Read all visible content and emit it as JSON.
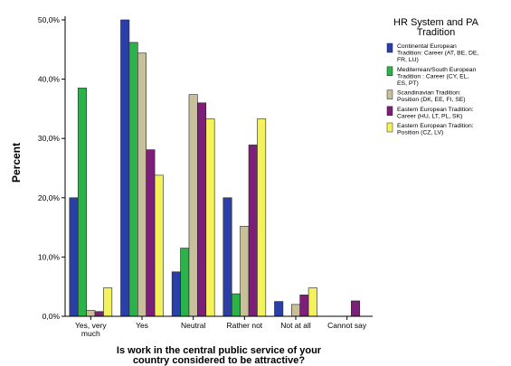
{
  "chart_data": {
    "type": "bar",
    "title": "",
    "xlabel": "Is work in the central public service of your country considered to be attractive?",
    "ylabel": "Percent",
    "ylim": [
      0,
      50
    ],
    "yticks": [
      0,
      10,
      20,
      30,
      40,
      50
    ],
    "ytick_labels": [
      "0,0%",
      "10,0%",
      "20,0%",
      "30,0%",
      "40,0%",
      "50,0%"
    ],
    "categories": [
      "Yes, very much",
      "Yes",
      "Neutral",
      "Rather not",
      "Not at all",
      "Cannot say"
    ],
    "grid": false,
    "legend_position": "right",
    "legend_title": "HR System and PA Tradition",
    "series": [
      {
        "name": "Continental European Tradition: Career (AT, BE, DE, FR, LU)",
        "color": "#2b3fa8",
        "values": [
          20.0,
          50.0,
          7.5,
          20.0,
          2.5,
          0.0
        ]
      },
      {
        "name": "Mediterrean/South European Tradition : Career (CY, EL, ES, PT)",
        "color": "#2bb34a",
        "values": [
          38.5,
          46.2,
          11.5,
          3.8,
          0.0,
          0.0
        ]
      },
      {
        "name": "Scandinavian Tradition: Position (DK, EE, FI, SE)",
        "color": "#c8c09a",
        "values": [
          1.0,
          44.4,
          37.4,
          15.2,
          2.0,
          0.0
        ]
      },
      {
        "name": "Eastern European Tradition: Career (HU, LT, PL, SK)",
        "color": "#7b1f78",
        "values": [
          0.8,
          28.1,
          36.0,
          28.9,
          3.6,
          2.6
        ]
      },
      {
        "name": "Eastern European Tradition: Position (CZ, LV)",
        "color": "#f4f25a",
        "values": [
          4.8,
          23.8,
          33.3,
          33.3,
          4.8,
          0.0
        ]
      }
    ]
  }
}
